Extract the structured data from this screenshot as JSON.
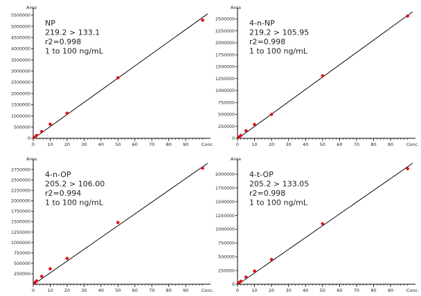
{
  "chart_data": [
    {
      "type": "scatter",
      "annotations": [
        "NP",
        "219.2 > 133.1",
        "r2=0.998",
        "1 to 100 ng/mL"
      ],
      "ylabel": "Area",
      "xlabel": "Conc.",
      "xlim": [
        0,
        103
      ],
      "ylim": [
        0,
        5650000
      ],
      "x_ticks": [
        0,
        10,
        20,
        30,
        40,
        50,
        60,
        70,
        80,
        90
      ],
      "y_ticks": [
        0,
        500000,
        1000000,
        1500000,
        2000000,
        2500000,
        3000000,
        3500000,
        4000000,
        4500000,
        5000000,
        5500000
      ],
      "x_tick_labels": [
        "0",
        "10",
        "20",
        "30",
        "40",
        "50",
        "60",
        "70",
        "80",
        "90"
      ],
      "y_tick_labels": [
        "0",
        "500000",
        "1000000",
        "1500000",
        "2000000",
        "2500000",
        "3000000",
        "3500000",
        "4000000",
        "4500000",
        "5000000",
        "5500000"
      ],
      "points": {
        "x": [
          1,
          2,
          5,
          10,
          20,
          50,
          100
        ],
        "y": [
          50000,
          130000,
          300000,
          630000,
          1120000,
          2700000,
          5270000
        ]
      },
      "fit_line": {
        "x": [
          0,
          103
        ],
        "y": [
          -20000,
          5560000
        ]
      },
      "colors": {
        "points": "#e0121b",
        "line": "#000000"
      }
    },
    {
      "type": "scatter",
      "annotations": [
        "4-n-NP",
        "219.2 > 105.95",
        "r2=0.998",
        "1 to 100 ng/mL"
      ],
      "ylabel": "Area",
      "xlabel": "Conc.",
      "xlim": [
        0,
        103
      ],
      "ylim": [
        0,
        2650000
      ],
      "x_ticks": [
        0,
        10,
        20,
        30,
        40,
        50,
        60,
        70,
        80,
        90
      ],
      "y_ticks": [
        0,
        250000,
        500000,
        750000,
        1000000,
        1250000,
        1500000,
        1750000,
        2000000,
        2250000,
        2500000
      ],
      "x_tick_labels": [
        "0",
        "10",
        "20",
        "30",
        "40",
        "50",
        "60",
        "70",
        "80",
        "90"
      ],
      "y_tick_labels": [
        "0",
        "250000",
        "500000",
        "750000",
        "1000000",
        "1250000",
        "1500000",
        "1750000",
        "2000000",
        "2250000",
        "2500000"
      ],
      "points": {
        "x": [
          1,
          2,
          5,
          10,
          20,
          50,
          100
        ],
        "y": [
          30000,
          60000,
          160000,
          290000,
          500000,
          1310000,
          2560000
        ]
      },
      "fit_line": {
        "x": [
          0,
          103
        ],
        "y": [
          -10000,
          2650000
        ]
      },
      "colors": {
        "points": "#e0121b",
        "line": "#000000"
      }
    },
    {
      "type": "scatter",
      "annotations": [
        "4-n-OP",
        "205.2 > 106.00",
        "r2=0.994",
        "1 to 100 ng/mL"
      ],
      "ylabel": "Area",
      "xlabel": "Conc.",
      "xlim": [
        0,
        103
      ],
      "ylim": [
        0,
        2900000
      ],
      "x_ticks": [
        0,
        10,
        20,
        30,
        40,
        50,
        60,
        70,
        80,
        90
      ],
      "y_ticks": [
        250000,
        500000,
        750000,
        1000000,
        1250000,
        1500000,
        1750000,
        2000000,
        2250000,
        2500000,
        2750000
      ],
      "x_tick_labels": [
        "0",
        "10",
        "20",
        "30",
        "40",
        "50",
        "60",
        "70",
        "80",
        "90"
      ],
      "y_tick_labels": [
        "250000",
        "500000",
        "750000",
        "1000000",
        "1250000",
        "1500000",
        "1750000",
        "2000000",
        "2250000",
        "2500000",
        "2750000"
      ],
      "points": {
        "x": [
          1,
          2,
          5,
          10,
          20,
          50,
          100
        ],
        "y": [
          40000,
          80000,
          190000,
          370000,
          620000,
          1480000,
          2780000
        ]
      },
      "fit_line": {
        "x": [
          0,
          103
        ],
        "y": [
          -10000,
          2900000
        ]
      },
      "colors": {
        "points": "#e0121b",
        "line": "#000000"
      }
    },
    {
      "type": "scatter",
      "annotations": [
        "4-t-OP",
        "205.2 > 133.05",
        "r2=0.998",
        "1 to 100 ng/mL"
      ],
      "ylabel": "Area",
      "xlabel": "Conc.",
      "xlim": [
        0,
        103
      ],
      "ylim": [
        0,
        2200000
      ],
      "x_ticks": [
        0,
        10,
        20,
        30,
        40,
        50,
        60,
        70,
        80,
        90
      ],
      "y_ticks": [
        0,
        250000,
        500000,
        750000,
        1000000,
        1250000,
        1500000,
        1750000,
        2000000
      ],
      "x_tick_labels": [
        "0",
        "10",
        "20",
        "30",
        "40",
        "50",
        "60",
        "70",
        "80",
        "90"
      ],
      "y_tick_labels": [
        "0",
        "250000",
        "500000",
        "750000",
        "1000000",
        "1250000",
        "1500000",
        "1750000",
        "2000000"
      ],
      "points": {
        "x": [
          1,
          2,
          5,
          10,
          20,
          50,
          100
        ],
        "y": [
          30000,
          55000,
          130000,
          240000,
          450000,
          1100000,
          2100000
        ]
      },
      "fit_line": {
        "x": [
          0,
          103
        ],
        "y": [
          -10000,
          2200000
        ]
      },
      "colors": {
        "points": "#e0121b",
        "line": "#000000"
      }
    }
  ]
}
